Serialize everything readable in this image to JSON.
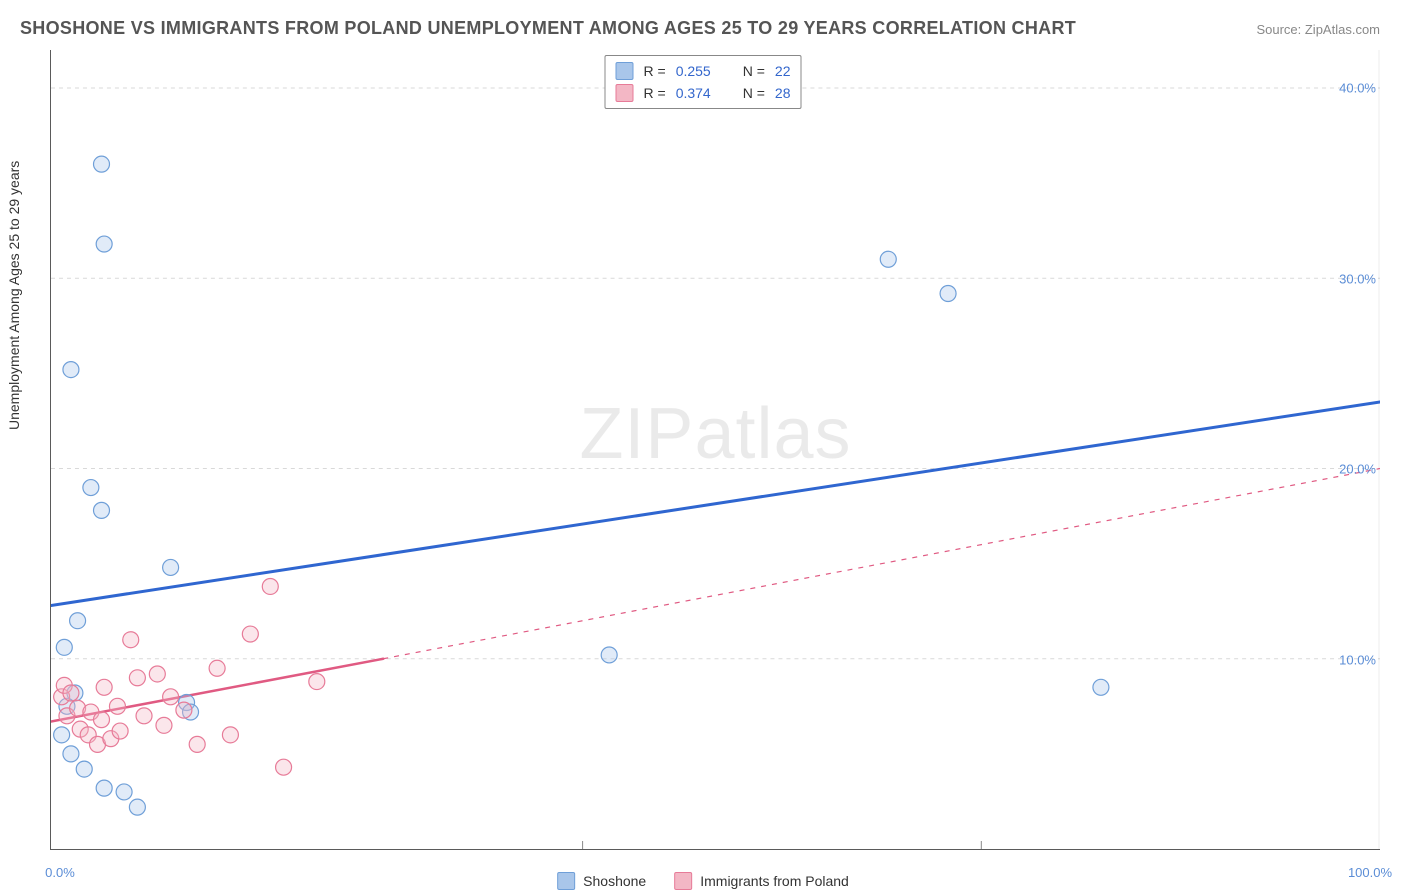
{
  "title": "SHOSHONE VS IMMIGRANTS FROM POLAND UNEMPLOYMENT AMONG AGES 25 TO 29 YEARS CORRELATION CHART",
  "source": "Source: ZipAtlas.com",
  "watermark_a": "ZIP",
  "watermark_b": "atlas",
  "y_axis_label": "Unemployment Among Ages 25 to 29 years",
  "chart": {
    "type": "scatter",
    "xlim": [
      0,
      100
    ],
    "ylim": [
      0,
      42
    ],
    "x_ticks": [
      0,
      40,
      70,
      100
    ],
    "x_tick_labels": [
      "0.0%",
      "",
      "",
      "100.0%"
    ],
    "x_minor_gridlines": [
      40,
      70
    ],
    "y_ticks": [
      10,
      20,
      30,
      40
    ],
    "y_tick_labels": [
      "10.0%",
      "20.0%",
      "30.0%",
      "40.0%"
    ],
    "grid_color": "#d9d9d9",
    "grid_dash": "4,4",
    "background_color": "#ffffff",
    "marker_radius": 8,
    "marker_stroke_width": 1.2,
    "marker_fill_opacity": 0.35,
    "series": [
      {
        "name": "Shoshone",
        "color_fill": "#a9c6ea",
        "color_stroke": "#6f9fd8",
        "R": "0.255",
        "N": "22",
        "points": [
          [
            1.5,
            25.2
          ],
          [
            3.8,
            36.0
          ],
          [
            4.0,
            31.8
          ],
          [
            3.0,
            19.0
          ],
          [
            3.8,
            17.8
          ],
          [
            2.0,
            12.0
          ],
          [
            1.0,
            10.6
          ],
          [
            1.8,
            8.2
          ],
          [
            1.2,
            7.5
          ],
          [
            0.8,
            6.0
          ],
          [
            1.5,
            5.0
          ],
          [
            2.5,
            4.2
          ],
          [
            4.0,
            3.2
          ],
          [
            5.5,
            3.0
          ],
          [
            6.5,
            2.2
          ],
          [
            9.0,
            14.8
          ],
          [
            10.2,
            7.7
          ],
          [
            10.5,
            7.2
          ],
          [
            42.0,
            10.2
          ],
          [
            63.0,
            31.0
          ],
          [
            67.5,
            29.2
          ],
          [
            79.0,
            8.5
          ]
        ],
        "trend": {
          "x1": 0,
          "y1": 12.8,
          "x2": 100,
          "y2": 23.5,
          "width": 3,
          "dash": null
        }
      },
      {
        "name": "Immigrants from Poland",
        "color_fill": "#f3b7c5",
        "color_stroke": "#e77b98",
        "R": "0.374",
        "N": "28",
        "points": [
          [
            0.8,
            8.0
          ],
          [
            1.0,
            8.6
          ],
          [
            1.5,
            8.2
          ],
          [
            1.2,
            7.0
          ],
          [
            2.0,
            7.4
          ],
          [
            2.2,
            6.3
          ],
          [
            2.8,
            6.0
          ],
          [
            3.0,
            7.2
          ],
          [
            3.5,
            5.5
          ],
          [
            3.8,
            6.8
          ],
          [
            4.0,
            8.5
          ],
          [
            4.5,
            5.8
          ],
          [
            5.0,
            7.5
          ],
          [
            5.2,
            6.2
          ],
          [
            6.0,
            11.0
          ],
          [
            6.5,
            9.0
          ],
          [
            7.0,
            7.0
          ],
          [
            8.0,
            9.2
          ],
          [
            8.5,
            6.5
          ],
          [
            9.0,
            8.0
          ],
          [
            10.0,
            7.3
          ],
          [
            11.0,
            5.5
          ],
          [
            12.5,
            9.5
          ],
          [
            13.5,
            6.0
          ],
          [
            15.0,
            11.3
          ],
          [
            16.5,
            13.8
          ],
          [
            17.5,
            4.3
          ],
          [
            20.0,
            8.8
          ]
        ],
        "trend_solid": {
          "x1": 0,
          "y1": 6.7,
          "x2": 25,
          "y2": 10.0,
          "width": 2.5,
          "dash": null
        },
        "trend_dash": {
          "x1": 25,
          "y1": 10.0,
          "x2": 100,
          "y2": 20.0,
          "width": 1.2,
          "dash": "5,6"
        }
      }
    ]
  },
  "legend": {
    "top": {
      "row1_label_r": "R =",
      "row1_label_n": "N =",
      "swatch_blue_fill": "#a9c6ea",
      "swatch_blue_stroke": "#6f9fd8",
      "swatch_pink_fill": "#f3b7c5",
      "swatch_pink_stroke": "#e77b98"
    },
    "bottom": {
      "item1": "Shoshone",
      "item2": "Immigrants from Poland"
    }
  }
}
